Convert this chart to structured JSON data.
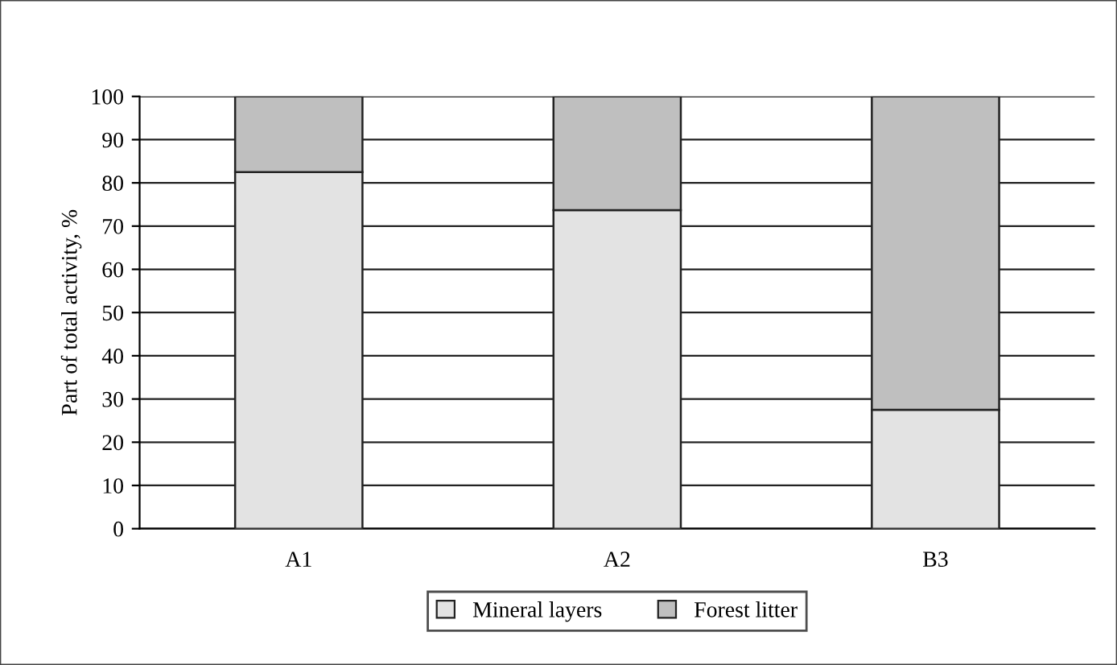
{
  "chart_data": {
    "type": "bar",
    "stacked": true,
    "ylabel": "Part of total activity, %",
    "categories": [
      "A1",
      "A2",
      "B3"
    ],
    "series": [
      {
        "name": "Mineral layers",
        "color": "#e3e3e3",
        "values": [
          82.5,
          73.7,
          27.5
        ]
      },
      {
        "name": "Forest litter",
        "color": "#bfbfbf",
        "values": [
          17.5,
          26.3,
          72.5
        ]
      }
    ],
    "ylim": [
      0,
      100
    ],
    "yticks": [
      0,
      10,
      20,
      30,
      40,
      50,
      60,
      70,
      80,
      90,
      100
    ],
    "grid": "y",
    "legend": "bottom"
  }
}
